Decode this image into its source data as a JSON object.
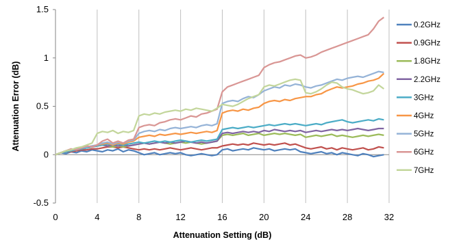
{
  "chart_data": {
    "type": "line",
    "title": "",
    "xlabel": "Attenuation Setting (dB)",
    "ylabel": "Attenuation Error (dB)",
    "xlim": [
      0,
      32
    ],
    "ylim": [
      -0.5,
      1.5
    ],
    "x_ticks": [
      "0",
      "4",
      "8",
      "12",
      "16",
      "20",
      "24",
      "28",
      "32"
    ],
    "y_ticks": [
      "-0.5",
      "0",
      "0.5",
      "1",
      "1.5"
    ],
    "grid": "vertical",
    "legend_position": "right",
    "x": [
      0,
      0.5,
      1,
      1.5,
      2,
      2.5,
      3,
      3.5,
      4,
      4.5,
      5,
      5.5,
      6,
      6.5,
      7,
      7.5,
      8,
      8.5,
      9,
      9.5,
      10,
      10.5,
      11,
      11.5,
      12,
      12.5,
      13,
      13.5,
      14,
      14.5,
      15,
      15.5,
      16,
      16.5,
      17,
      17.5,
      18,
      18.5,
      19,
      19.5,
      20,
      20.5,
      21,
      21.5,
      22,
      22.5,
      23,
      23.5,
      24,
      24.5,
      25,
      25.5,
      26,
      26.5,
      27,
      27.5,
      28,
      28.5,
      29,
      29.5,
      30,
      30.5,
      31,
      31.5
    ],
    "series": [
      {
        "name": "0.2GHz",
        "color": "#4f81bd",
        "values": [
          0,
          0.02,
          0.01,
          0.03,
          0.02,
          0.04,
          0.03,
          0.05,
          0.04,
          0.03,
          0.05,
          0.04,
          0.06,
          0.03,
          0.05,
          0.04,
          0.02,
          0.0,
          0.01,
          0.02,
          0.0,
          0.01,
          0.02,
          0.01,
          0.02,
          0.0,
          -0.01,
          0.0,
          0.01,
          0.0,
          -0.01,
          0.0,
          0.05,
          0.06,
          0.04,
          0.05,
          0.06,
          0.05,
          0.07,
          0.06,
          0.05,
          0.06,
          0.04,
          0.05,
          0.06,
          0.05,
          0.06,
          0.03,
          0.02,
          0.01,
          0.02,
          0.03,
          0.01,
          0.02,
          0.0,
          0.02,
          0.01,
          0.0,
          -0.01,
          0.01,
          0.0,
          -0.02,
          -0.01,
          0.0
        ]
      },
      {
        "name": "0.9GHz",
        "color": "#c0504d",
        "values": [
          0,
          0.02,
          0.03,
          0.03,
          0.04,
          0.05,
          0.05,
          0.06,
          0.06,
          0.07,
          0.08,
          0.08,
          0.07,
          0.08,
          0.07,
          0.06,
          0.05,
          0.06,
          0.05,
          0.06,
          0.05,
          0.06,
          0.07,
          0.06,
          0.05,
          0.06,
          0.07,
          0.06,
          0.05,
          0.06,
          0.07,
          0.07,
          0.09,
          0.1,
          0.11,
          0.1,
          0.11,
          0.1,
          0.12,
          0.11,
          0.1,
          0.11,
          0.1,
          0.11,
          0.12,
          0.1,
          0.11,
          0.09,
          0.07,
          0.06,
          0.07,
          0.08,
          0.06,
          0.07,
          0.05,
          0.07,
          0.06,
          0.05,
          0.06,
          0.07,
          0.05,
          0.06,
          0.08,
          0.07
        ]
      },
      {
        "name": "1.8GHz",
        "color": "#9bbb59",
        "values": [
          0,
          0.02,
          0.03,
          0.04,
          0.05,
          0.06,
          0.07,
          0.08,
          0.09,
          0.1,
          0.09,
          0.08,
          0.09,
          0.08,
          0.09,
          0.1,
          0.11,
          0.12,
          0.11,
          0.12,
          0.13,
          0.12,
          0.11,
          0.12,
          0.13,
          0.12,
          0.13,
          0.12,
          0.11,
          0.12,
          0.13,
          0.14,
          0.2,
          0.21,
          0.2,
          0.21,
          0.22,
          0.2,
          0.21,
          0.22,
          0.2,
          0.21,
          0.22,
          0.21,
          0.22,
          0.21,
          0.2,
          0.21,
          0.18,
          0.19,
          0.2,
          0.19,
          0.2,
          0.21,
          0.19,
          0.2,
          0.19,
          0.18,
          0.19,
          0.2,
          0.19,
          0.2,
          0.21,
          0.2
        ]
      },
      {
        "name": "2.2GHz",
        "color": "#8064a2",
        "values": [
          0,
          0.02,
          0.03,
          0.04,
          0.05,
          0.06,
          0.07,
          0.08,
          0.09,
          0.1,
          0.09,
          0.1,
          0.09,
          0.1,
          0.09,
          0.1,
          0.11,
          0.12,
          0.11,
          0.12,
          0.13,
          0.12,
          0.13,
          0.12,
          0.13,
          0.14,
          0.13,
          0.12,
          0.13,
          0.12,
          0.13,
          0.14,
          0.22,
          0.23,
          0.22,
          0.23,
          0.24,
          0.23,
          0.24,
          0.23,
          0.25,
          0.24,
          0.26,
          0.25,
          0.24,
          0.25,
          0.24,
          0.25,
          0.23,
          0.24,
          0.25,
          0.24,
          0.25,
          0.26,
          0.25,
          0.26,
          0.25,
          0.26,
          0.27,
          0.26,
          0.25,
          0.26,
          0.27,
          0.27
        ]
      },
      {
        "name": "3GHz",
        "color": "#4bacc6",
        "values": [
          0,
          0.02,
          0.03,
          0.04,
          0.05,
          0.06,
          0.07,
          0.08,
          0.09,
          0.1,
          0.11,
          0.1,
          0.11,
          0.1,
          0.11,
          0.12,
          0.13,
          0.12,
          0.13,
          0.14,
          0.13,
          0.14,
          0.13,
          0.14,
          0.15,
          0.14,
          0.13,
          0.14,
          0.15,
          0.14,
          0.15,
          0.16,
          0.26,
          0.27,
          0.28,
          0.27,
          0.28,
          0.29,
          0.28,
          0.29,
          0.3,
          0.31,
          0.3,
          0.31,
          0.32,
          0.31,
          0.32,
          0.31,
          0.3,
          0.31,
          0.32,
          0.31,
          0.33,
          0.34,
          0.35,
          0.36,
          0.34,
          0.33,
          0.34,
          0.35,
          0.36,
          0.35,
          0.37,
          0.36
        ]
      },
      {
        "name": "4GHz",
        "color": "#f79646",
        "values": [
          0,
          0.02,
          0.04,
          0.05,
          0.06,
          0.07,
          0.08,
          0.09,
          0.1,
          0.11,
          0.12,
          0.1,
          0.12,
          0.11,
          0.13,
          0.14,
          0.18,
          0.19,
          0.2,
          0.19,
          0.21,
          0.2,
          0.21,
          0.22,
          0.21,
          0.22,
          0.23,
          0.22,
          0.23,
          0.24,
          0.23,
          0.25,
          0.43,
          0.45,
          0.46,
          0.45,
          0.47,
          0.46,
          0.48,
          0.49,
          0.53,
          0.55,
          0.56,
          0.55,
          0.57,
          0.56,
          0.58,
          0.59,
          0.6,
          0.6,
          0.62,
          0.63,
          0.66,
          0.68,
          0.7,
          0.69,
          0.7,
          0.71,
          0.73,
          0.74,
          0.76,
          0.77,
          0.79,
          0.84
        ]
      },
      {
        "name": "5GHz",
        "color": "#95b3d7",
        "values": [
          0,
          0.02,
          0.04,
          0.05,
          0.06,
          0.07,
          0.08,
          0.09,
          0.1,
          0.12,
          0.13,
          0.11,
          0.13,
          0.12,
          0.14,
          0.15,
          0.22,
          0.24,
          0.25,
          0.24,
          0.26,
          0.25,
          0.27,
          0.28,
          0.27,
          0.28,
          0.29,
          0.28,
          0.3,
          0.31,
          0.3,
          0.32,
          0.53,
          0.55,
          0.56,
          0.55,
          0.58,
          0.6,
          0.59,
          0.62,
          0.66,
          0.68,
          0.7,
          0.69,
          0.72,
          0.71,
          0.73,
          0.72,
          0.7,
          0.69,
          0.71,
          0.72,
          0.74,
          0.76,
          0.78,
          0.77,
          0.79,
          0.8,
          0.81,
          0.8,
          0.82,
          0.84,
          0.86,
          0.85
        ]
      },
      {
        "name": "6GHz",
        "color": "#d99694",
        "values": [
          0,
          0.02,
          0.04,
          0.06,
          0.05,
          0.07,
          0.09,
          0.08,
          0.1,
          0.14,
          0.16,
          0.12,
          0.14,
          0.12,
          0.15,
          0.16,
          0.28,
          0.3,
          0.31,
          0.3,
          0.33,
          0.34,
          0.36,
          0.37,
          0.36,
          0.38,
          0.4,
          0.39,
          0.42,
          0.43,
          0.45,
          0.47,
          0.65,
          0.7,
          0.72,
          0.74,
          0.76,
          0.78,
          0.8,
          0.82,
          0.9,
          0.93,
          0.95,
          0.96,
          0.98,
          1.0,
          1.02,
          1.03,
          1.0,
          1.01,
          1.03,
          1.06,
          1.08,
          1.1,
          1.12,
          1.14,
          1.16,
          1.18,
          1.2,
          1.22,
          1.24,
          1.3,
          1.38,
          1.42
        ]
      },
      {
        "name": "7GHz",
        "color": "#c3d69b",
        "values": [
          0,
          0.02,
          0.04,
          0.05,
          0.07,
          0.08,
          0.1,
          0.12,
          0.22,
          0.24,
          0.23,
          0.25,
          0.22,
          0.24,
          0.23,
          0.25,
          0.4,
          0.42,
          0.41,
          0.43,
          0.42,
          0.44,
          0.45,
          0.46,
          0.45,
          0.47,
          0.46,
          0.48,
          0.47,
          0.46,
          0.45,
          0.48,
          0.52,
          0.51,
          0.5,
          0.52,
          0.55,
          0.58,
          0.6,
          0.62,
          0.7,
          0.72,
          0.71,
          0.73,
          0.75,
          0.77,
          0.78,
          0.77,
          0.64,
          0.63,
          0.65,
          0.68,
          0.72,
          0.75,
          0.74,
          0.7,
          0.68,
          0.67,
          0.65,
          0.63,
          0.64,
          0.66,
          0.72,
          0.68
        ]
      }
    ]
  }
}
